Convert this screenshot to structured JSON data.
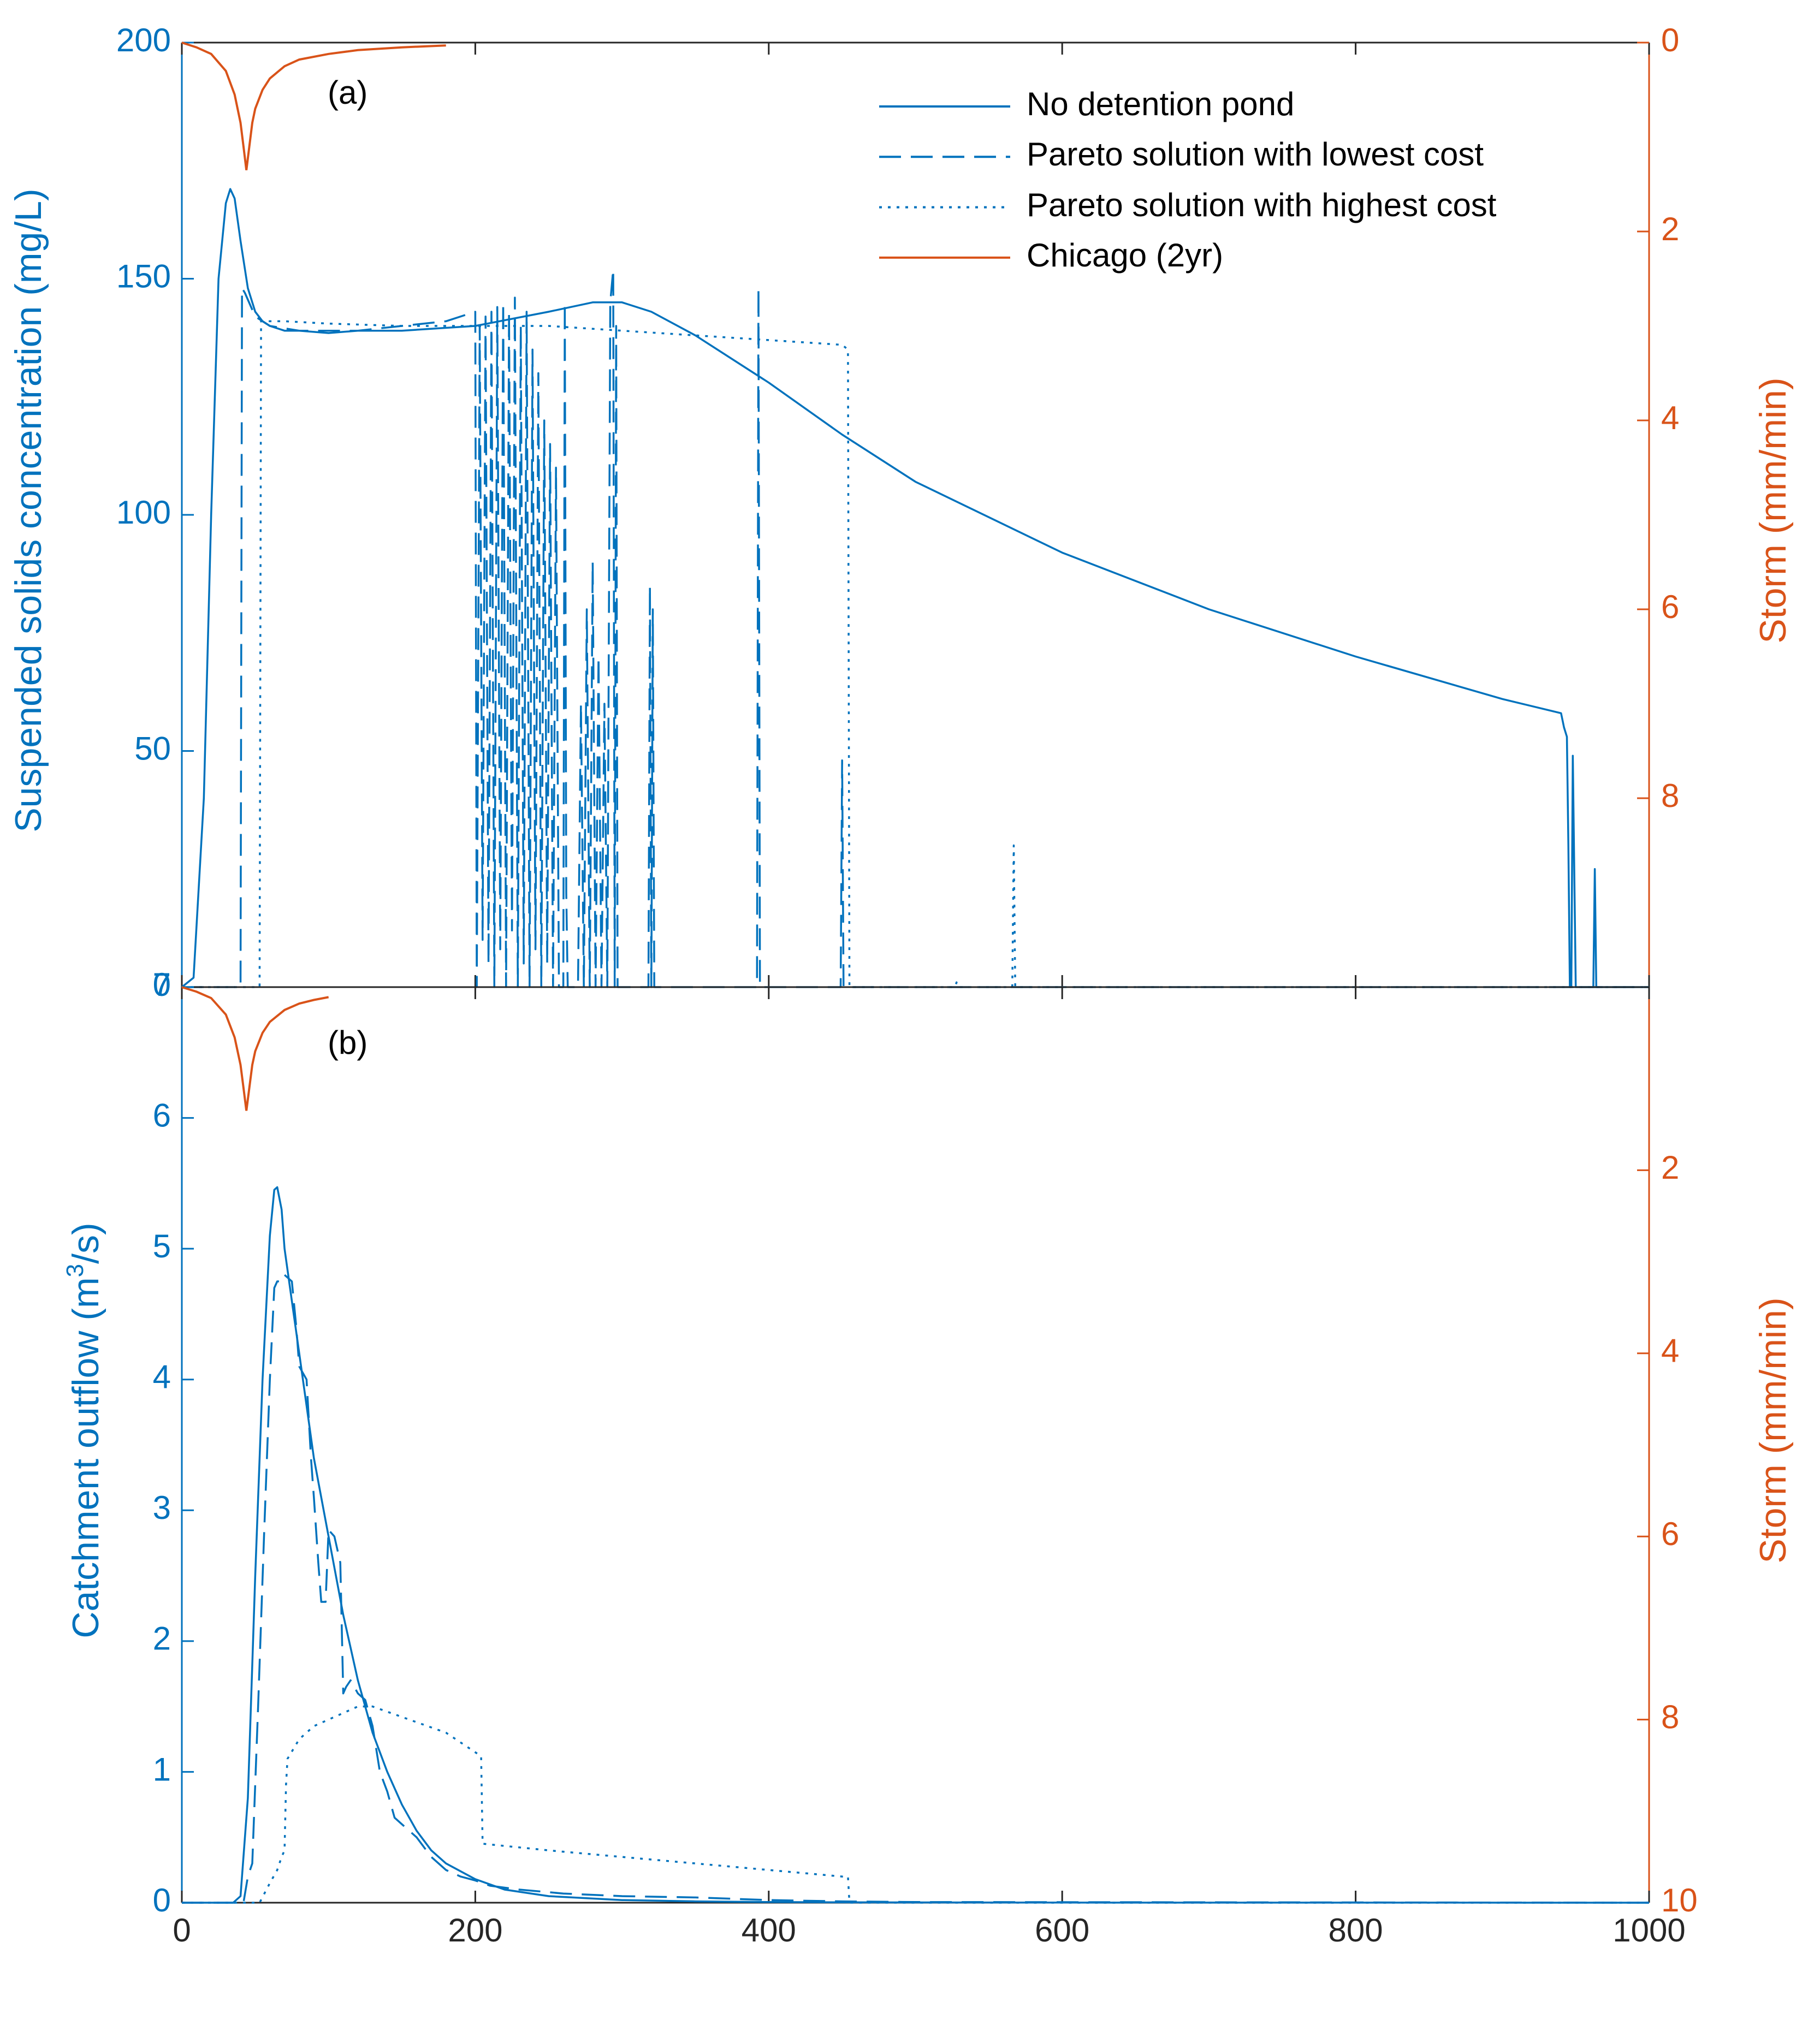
{
  "colors": {
    "blue": "#0072BD",
    "orange": "#D95319",
    "axis": "#262626"
  },
  "legend": [
    {
      "label": "No detention pond",
      "style": "solid",
      "color": "#0072BD"
    },
    {
      "label": "Pareto solution with lowest cost",
      "style": "dashed",
      "color": "#0072BD"
    },
    {
      "label": "Pareto solution with highest cost",
      "style": "dotted",
      "color": "#0072BD"
    },
    {
      "label": "Chicago (2yr)",
      "style": "solid",
      "color": "#D95319"
    }
  ],
  "chart_data": [
    {
      "type": "line",
      "panel_label": "(a)",
      "ylabel": "Suspended solids concentration (mg/L)",
      "y2label": "Storm (mm/min)",
      "xlim": [
        0,
        1000
      ],
      "ylim": [
        0,
        200
      ],
      "y2lim": [
        0,
        10
      ],
      "y2_reversed": true,
      "xticks": [
        0,
        200,
        400,
        600,
        800,
        1000
      ],
      "yticks": [
        0,
        50,
        100,
        150,
        200
      ],
      "ytick_labels": [
        "0",
        "50",
        "100",
        "150",
        "200"
      ],
      "y2ticks": [
        0,
        2,
        4,
        6,
        8
      ],
      "y2tick_labels": [
        "0",
        "2",
        "4",
        "6",
        "8"
      ],
      "storm": {
        "name": "Chicago (2yr)",
        "x": [
          0,
          10,
          20,
          30,
          36,
          40,
          42,
          44,
          46,
          48,
          50,
          55,
          60,
          70,
          80,
          100,
          120,
          150,
          180
        ],
        "values": [
          0.0,
          0.05,
          0.12,
          0.3,
          0.55,
          0.85,
          1.1,
          1.35,
          1.1,
          0.85,
          0.7,
          0.5,
          0.38,
          0.25,
          0.18,
          0.12,
          0.08,
          0.05,
          0.03
        ]
      },
      "series": [
        {
          "name": "No detention pond",
          "style": "solid",
          "x": [
            0,
            8,
            15,
            20,
            25,
            30,
            33,
            36,
            40,
            45,
            50,
            55,
            60,
            70,
            80,
            100,
            120,
            150,
            200,
            250,
            280,
            300,
            320,
            350,
            400,
            450,
            500,
            600,
            700,
            800,
            900,
            940,
            942,
            944,
            945,
            946,
            947,
            948,
            950,
            952,
            953,
            955,
            957,
            960,
            962,
            963,
            964,
            965,
            966,
            1000
          ],
          "values": [
            0,
            2,
            40,
            100,
            150,
            166,
            169,
            167,
            158,
            148,
            143,
            141,
            140,
            139,
            139,
            138.5,
            139,
            139,
            140,
            143,
            145,
            145,
            143,
            138,
            128,
            117,
            107,
            92,
            80,
            70,
            61,
            58,
            55,
            53,
            30,
            0,
            0,
            49,
            0,
            0,
            0,
            0,
            0,
            0,
            0,
            25,
            0,
            0,
            0,
            0
          ]
        },
        {
          "name": "Pareto solution with lowest cost",
          "style": "dashed",
          "x": [
            0,
            40,
            41,
            43,
            50,
            60,
            80,
            100,
            120,
            150,
            180,
            200,
            201,
            203,
            205,
            207,
            209,
            211,
            213,
            215,
            217,
            219,
            221,
            223,
            225,
            227,
            229,
            231,
            233,
            235,
            237,
            239,
            241,
            243,
            245,
            247,
            249,
            251,
            253,
            255,
            257,
            260,
            261,
            262,
            263,
            265,
            270,
            272,
            274,
            276,
            278,
            280,
            282,
            284,
            286,
            288,
            290,
            292,
            294,
            295,
            296,
            297,
            298,
            300,
            318,
            319,
            320,
            321,
            322,
            340,
            392,
            393,
            394,
            395,
            396,
            440,
            449,
            450,
            451,
            452,
            1000
          ],
          "values": [
            0,
            0,
            148,
            147,
            142,
            140,
            139,
            139,
            139,
            140,
            141,
            143,
            0,
            140,
            10,
            142,
            5,
            143,
            0,
            144,
            8,
            145,
            0,
            143,
            12,
            146,
            0,
            140,
            5,
            143,
            0,
            135,
            8,
            130,
            0,
            120,
            5,
            115,
            0,
            110,
            0,
            0,
            145,
            20,
            0,
            0,
            0,
            60,
            0,
            80,
            0,
            90,
            0,
            70,
            0,
            60,
            0,
            145,
            152,
            0,
            140,
            0,
            0,
            0,
            0,
            85,
            0,
            80,
            0,
            0,
            0,
            148,
            0,
            0,
            0,
            0,
            0,
            48,
            0,
            0,
            0
          ]
        },
        {
          "name": "Pareto solution with highest cost",
          "style": "dotted",
          "x": [
            0,
            53,
            54,
            56,
            60,
            70,
            100,
            150,
            200,
            250,
            300,
            350,
            400,
            450,
            454,
            455,
            456,
            527,
            528,
            529,
            530,
            566,
            567,
            568,
            569,
            570,
            1000
          ],
          "values": [
            0,
            0,
            141,
            141,
            141,
            141,
            140.5,
            140,
            140,
            140,
            139,
            138,
            137,
            136,
            135,
            0,
            0,
            0,
            1,
            0,
            0,
            0,
            30,
            0,
            0,
            0,
            0
          ]
        }
      ]
    },
    {
      "type": "line",
      "panel_label": "(b)",
      "ylabel_main": "Catchment outflow (m",
      "ylabel_sup": "3",
      "ylabel_end": "/s)",
      "y2label": "Storm (mm/min)",
      "xlim": [
        0,
        1000
      ],
      "ylim": [
        0,
        7
      ],
      "y2lim": [
        0,
        10
      ],
      "y2_reversed": true,
      "xticks": [
        0,
        200,
        400,
        600,
        800,
        1000
      ],
      "xtick_labels": [
        "0",
        "200",
        "400",
        "600",
        "800",
        "1000"
      ],
      "yticks": [
        0,
        1,
        2,
        3,
        4,
        5,
        6,
        7
      ],
      "ytick_labels": [
        "0",
        "1",
        "2",
        "3",
        "4",
        "5",
        "6",
        "7"
      ],
      "y2ticks": [
        2,
        4,
        6,
        8,
        10
      ],
      "y2tick_labels": [
        "2",
        "4",
        "6",
        "8",
        "10"
      ],
      "storm": {
        "name": "Chicago (2yr)",
        "x": [
          0,
          10,
          20,
          30,
          36,
          40,
          42,
          44,
          46,
          48,
          50,
          55,
          60,
          70,
          80,
          90,
          100
        ],
        "values": [
          0.0,
          0.05,
          0.12,
          0.3,
          0.55,
          0.85,
          1.1,
          1.35,
          1.1,
          0.85,
          0.7,
          0.5,
          0.38,
          0.25,
          0.18,
          0.14,
          0.11
        ]
      },
      "series": [
        {
          "name": "No detention pond",
          "style": "solid",
          "x": [
            0,
            35,
            40,
            45,
            50,
            55,
            60,
            63,
            65,
            68,
            70,
            75,
            80,
            85,
            90,
            100,
            110,
            120,
            130,
            140,
            150,
            160,
            170,
            180,
            200,
            220,
            250,
            300,
            350,
            400,
            450,
            500,
            600,
            1000
          ],
          "values": [
            0,
            0,
            0.05,
            0.8,
            2.5,
            4.0,
            5.1,
            5.45,
            5.47,
            5.3,
            5.0,
            4.6,
            4.2,
            3.8,
            3.4,
            2.8,
            2.2,
            1.7,
            1.3,
            1.0,
            0.75,
            0.55,
            0.4,
            0.3,
            0.18,
            0.1,
            0.05,
            0.02,
            0.01,
            0.005,
            0.003,
            0.002,
            0.001,
            0.0
          ]
        },
        {
          "name": "Pareto solution with lowest cost",
          "style": "dashed",
          "x": [
            0,
            42,
            45,
            48,
            52,
            56,
            60,
            63,
            65,
            68,
            70,
            75,
            78,
            80,
            85,
            88,
            90,
            93,
            95,
            98,
            100,
            104,
            108,
            110,
            112,
            115,
            120,
            125,
            130,
            135,
            140,
            145,
            150,
            155,
            160,
            170,
            180,
            190,
            200,
            210,
            230,
            260,
            300,
            350,
            400,
            450,
            500,
            1000
          ],
          "values": [
            0,
            0,
            0.2,
            0.3,
            1.5,
            2.8,
            4.0,
            4.7,
            4.75,
            4.75,
            4.8,
            4.75,
            4.4,
            4.1,
            4.0,
            3.4,
            3.1,
            2.6,
            2.3,
            2.3,
            2.85,
            2.8,
            2.6,
            1.6,
            1.65,
            1.7,
            1.6,
            1.55,
            1.35,
            1.0,
            0.85,
            0.65,
            0.6,
            0.55,
            0.5,
            0.35,
            0.25,
            0.2,
            0.17,
            0.13,
            0.1,
            0.07,
            0.05,
            0.04,
            0.02,
            0.01,
            0.005,
            0.0
          ]
        },
        {
          "name": "Pareto solution with highest cost",
          "style": "dotted",
          "x": [
            0,
            53,
            60,
            65,
            68,
            70,
            71,
            72,
            80,
            90,
            100,
            110,
            120,
            130,
            150,
            180,
            200,
            204,
            205,
            206,
            250,
            300,
            350,
            400,
            450,
            454,
            455,
            456,
            1000
          ],
          "values": [
            0,
            0,
            0.15,
            0.25,
            0.35,
            0.4,
            0.9,
            1.1,
            1.25,
            1.35,
            1.4,
            1.45,
            1.5,
            1.5,
            1.42,
            1.3,
            1.15,
            1.12,
            0.45,
            0.45,
            0.4,
            0.35,
            0.3,
            0.25,
            0.2,
            0.2,
            0.0,
            0.0,
            0.0
          ]
        }
      ]
    }
  ]
}
